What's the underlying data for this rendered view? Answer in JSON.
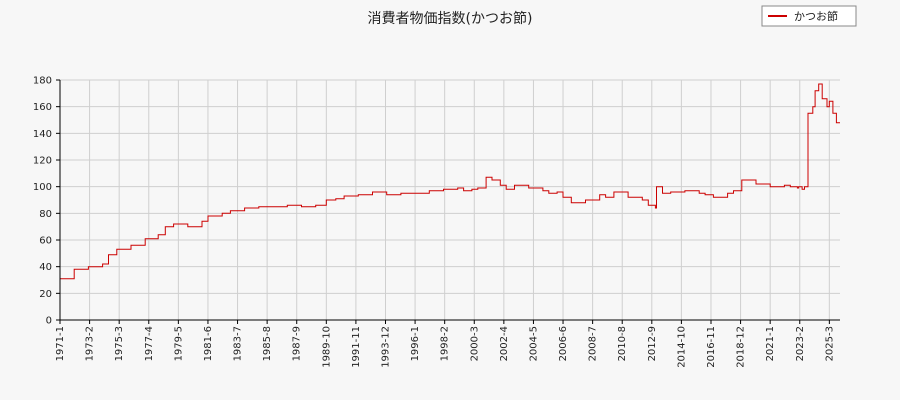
{
  "chart_data": {
    "type": "line",
    "title": "消費者物価指数(かつお節)",
    "xlabel": "",
    "ylabel": "",
    "ylim": [
      0,
      180
    ],
    "yticks": [
      0,
      20,
      40,
      60,
      80,
      100,
      120,
      140,
      160,
      180
    ],
    "xlim": [
      "1971-01",
      "2025-12"
    ],
    "xtick_labels": [
      "1971-1",
      "1973-2",
      "1975-3",
      "1977-4",
      "1979-5",
      "1981-6",
      "1983-7",
      "1985-8",
      "1987-9",
      "1989-10",
      "1991-11",
      "1993-12",
      "1996-1",
      "1998-2",
      "2000-3",
      "2002-4",
      "2004-5",
      "2006-6",
      "2008-7",
      "2010-8",
      "2012-9",
      "2014-10",
      "2016-11",
      "2018-12",
      "2021-1",
      "2023-2",
      "2025-3"
    ],
    "grid": true,
    "legend_position": "top-right",
    "colors": {
      "series": "#cc0000",
      "grid": "#cfcfcf",
      "background": "#f7f7f7"
    },
    "series": [
      {
        "name": "かつお節",
        "x": [
          "1971-01",
          "1972-01",
          "1973-01",
          "1974-01",
          "1974-06",
          "1975-01",
          "1976-01",
          "1977-01",
          "1977-12",
          "1978-06",
          "1979-01",
          "1980-01",
          "1981-01",
          "1981-06",
          "1982-06",
          "1983-01",
          "1984-01",
          "1985-01",
          "1986-01",
          "1987-01",
          "1988-01",
          "1989-01",
          "1989-10",
          "1990-06",
          "1991-01",
          "1992-01",
          "1993-01",
          "1994-01",
          "1995-01",
          "1996-01",
          "1997-01",
          "1998-01",
          "1999-01",
          "1999-06",
          "2000-01",
          "2000-06",
          "2001-01",
          "2001-06",
          "2002-01",
          "2002-06",
          "2003-01",
          "2004-01",
          "2005-01",
          "2005-06",
          "2006-01",
          "2006-06",
          "2007-01",
          "2008-01",
          "2009-01",
          "2009-06",
          "2010-01",
          "2011-01",
          "2012-01",
          "2012-06",
          "2012-12",
          "2013-01",
          "2013-06",
          "2014-01",
          "2015-01",
          "2016-01",
          "2016-06",
          "2017-01",
          "2018-01",
          "2018-06",
          "2019-01",
          "2020-01",
          "2021-01",
          "2022-01",
          "2022-06",
          "2022-12",
          "2023-01",
          "2023-02",
          "2023-04",
          "2023-06",
          "2023-09",
          "2024-01",
          "2024-03",
          "2024-06",
          "2024-09",
          "2025-01",
          "2025-03",
          "2025-06",
          "2025-09"
        ],
        "values": [
          31,
          38,
          40,
          42,
          49,
          53,
          56,
          61,
          64,
          70,
          72,
          70,
          74,
          78,
          80,
          82,
          84,
          85,
          85,
          86,
          85,
          86,
          90,
          91,
          93,
          94,
          96,
          94,
          95,
          95,
          97,
          98,
          99,
          97,
          98,
          99,
          107,
          105,
          101,
          98,
          101,
          99,
          97,
          95,
          96,
          92,
          88,
          90,
          94,
          92,
          96,
          92,
          90,
          86,
          84,
          100,
          95,
          96,
          97,
          95,
          94,
          92,
          95,
          97,
          105,
          102,
          100,
          101,
          100,
          99,
          100,
          100,
          98,
          100,
          155,
          160,
          172,
          177,
          166,
          160,
          164,
          155,
          148
        ]
      }
    ]
  }
}
